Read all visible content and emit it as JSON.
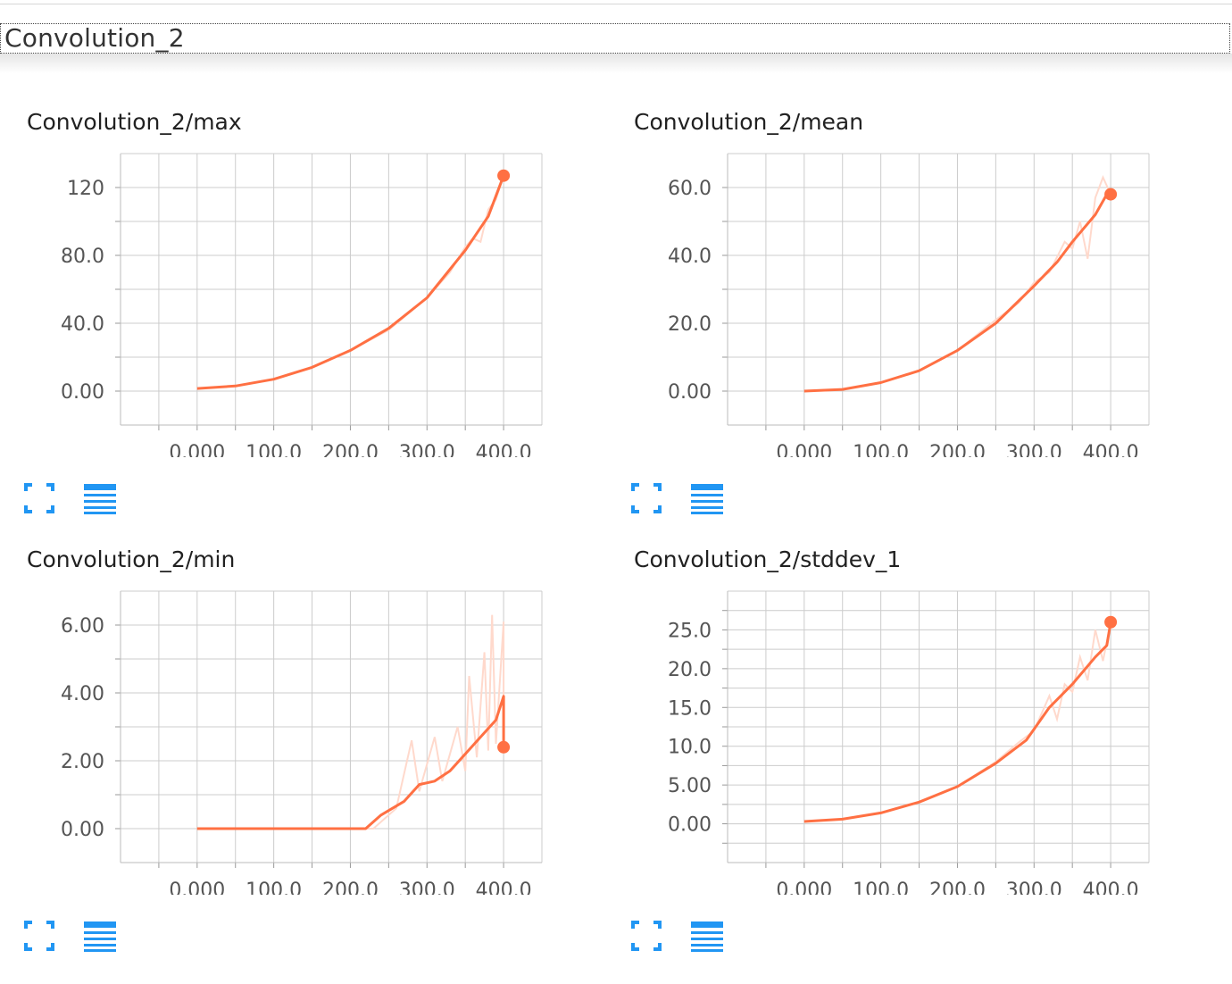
{
  "group": {
    "title": "Convolution_2"
  },
  "colors": {
    "line": "#ff7043",
    "raw": "#ffd9cc",
    "grid": "#cccccc",
    "icon": "#2196f3"
  },
  "icons": [
    "fullscreen-icon",
    "list-icon"
  ],
  "chart_data": [
    {
      "type": "line",
      "title": "Convolution_2/max",
      "x_ticks": [
        "0.000",
        "100.0",
        "200.0",
        "300.0",
        "400.0"
      ],
      "y_ticks": [
        "0.00",
        "40.0",
        "80.0",
        "120"
      ],
      "xlim": [
        -100,
        450
      ],
      "ylim": [
        -20,
        140
      ],
      "series": [
        {
          "smoothed": [
            [
              0,
              1.5
            ],
            [
              50,
              3
            ],
            [
              100,
              7
            ],
            [
              150,
              14
            ],
            [
              200,
              24
            ],
            [
              250,
              37
            ],
            [
              300,
              55
            ],
            [
              350,
              83
            ],
            [
              380,
              103
            ],
            [
              400,
              127
            ]
          ],
          "raw": [
            [
              0,
              1.5
            ],
            [
              50,
              3
            ],
            [
              100,
              7
            ],
            [
              150,
              14
            ],
            [
              200,
              24
            ],
            [
              250,
              36
            ],
            [
              300,
              55
            ],
            [
              330,
              70
            ],
            [
              350,
              85
            ],
            [
              360,
              90
            ],
            [
              370,
              88
            ],
            [
              380,
              107
            ],
            [
              390,
              113
            ],
            [
              400,
              127
            ]
          ],
          "end_value": 127
        }
      ]
    },
    {
      "type": "line",
      "title": "Convolution_2/mean",
      "x_ticks": [
        "0.000",
        "100.0",
        "200.0",
        "300.0",
        "400.0"
      ],
      "y_ticks": [
        "0.00",
        "20.0",
        "40.0",
        "60.0"
      ],
      "xlim": [
        -100,
        450
      ],
      "ylim": [
        -10,
        70
      ],
      "series": [
        {
          "smoothed": [
            [
              0,
              0
            ],
            [
              50,
              0.5
            ],
            [
              100,
              2.5
            ],
            [
              150,
              6
            ],
            [
              200,
              12
            ],
            [
              250,
              20
            ],
            [
              300,
              31
            ],
            [
              330,
              38
            ],
            [
              350,
              44
            ],
            [
              380,
              52
            ],
            [
              395,
              58
            ],
            [
              400,
              58
            ]
          ],
          "raw": [
            [
              0,
              0
            ],
            [
              50,
              0.5
            ],
            [
              100,
              2.5
            ],
            [
              150,
              6
            ],
            [
              200,
              12
            ],
            [
              250,
              21
            ],
            [
              280,
              26
            ],
            [
              300,
              32
            ],
            [
              320,
              35
            ],
            [
              340,
              44
            ],
            [
              350,
              42
            ],
            [
              360,
              50
            ],
            [
              370,
              39
            ],
            [
              380,
              57
            ],
            [
              390,
              63
            ],
            [
              400,
              58
            ]
          ],
          "end_value": 58
        }
      ]
    },
    {
      "type": "line",
      "title": "Convolution_2/min",
      "x_ticks": [
        "0.000",
        "100.0",
        "200.0",
        "300.0",
        "400.0"
      ],
      "y_ticks": [
        "0.00",
        "2.00",
        "4.00",
        "6.00"
      ],
      "xlim": [
        -100,
        450
      ],
      "ylim": [
        -1,
        7
      ],
      "series": [
        {
          "smoothed": [
            [
              0,
              0
            ],
            [
              100,
              0
            ],
            [
              200,
              0
            ],
            [
              220,
              0
            ],
            [
              240,
              0.4
            ],
            [
              270,
              0.8
            ],
            [
              290,
              1.3
            ],
            [
              310,
              1.4
            ],
            [
              330,
              1.7
            ],
            [
              350,
              2.2
            ],
            [
              370,
              2.7
            ],
            [
              390,
              3.2
            ],
            [
              400,
              3.9
            ],
            [
              400,
              2.4
            ]
          ],
          "raw": [
            [
              0,
              0
            ],
            [
              200,
              0
            ],
            [
              230,
              0
            ],
            [
              260,
              0.6
            ],
            [
              280,
              2.6
            ],
            [
              290,
              1.1
            ],
            [
              310,
              2.7
            ],
            [
              320,
              1.4
            ],
            [
              340,
              3.0
            ],
            [
              350,
              1.7
            ],
            [
              355,
              4.5
            ],
            [
              365,
              2.1
            ],
            [
              375,
              5.2
            ],
            [
              380,
              2.3
            ],
            [
              385,
              6.3
            ],
            [
              390,
              2.5
            ],
            [
              400,
              6.1
            ],
            [
              400,
              2.4
            ]
          ],
          "end_value": 2.4
        }
      ]
    },
    {
      "type": "line",
      "title": "Convolution_2/stddev_1",
      "x_ticks": [
        "0.000",
        "100.0",
        "200.0",
        "300.0",
        "400.0"
      ],
      "y_ticks": [
        "0.00",
        "5.00",
        "10.0",
        "15.0",
        "20.0",
        "25.0"
      ],
      "xlim": [
        -100,
        450
      ],
      "ylim": [
        -5,
        30
      ],
      "series": [
        {
          "smoothed": [
            [
              0,
              0.3
            ],
            [
              50,
              0.6
            ],
            [
              100,
              1.4
            ],
            [
              150,
              2.8
            ],
            [
              200,
              4.8
            ],
            [
              250,
              7.8
            ],
            [
              290,
              10.8
            ],
            [
              320,
              15
            ],
            [
              350,
              18
            ],
            [
              380,
              21.5
            ],
            [
              395,
              23
            ],
            [
              400,
              26
            ]
          ],
          "raw": [
            [
              0,
              0.3
            ],
            [
              50,
              0.6
            ],
            [
              100,
              1.4
            ],
            [
              150,
              2.8
            ],
            [
              200,
              4.8
            ],
            [
              250,
              8
            ],
            [
              280,
              10.5
            ],
            [
              300,
              12
            ],
            [
              320,
              16.5
            ],
            [
              330,
              13.5
            ],
            [
              340,
              18
            ],
            [
              350,
              17
            ],
            [
              360,
              21.5
            ],
            [
              370,
              18.5
            ],
            [
              380,
              25
            ],
            [
              390,
              21
            ],
            [
              400,
              26
            ]
          ],
          "end_value": 26
        }
      ]
    }
  ]
}
